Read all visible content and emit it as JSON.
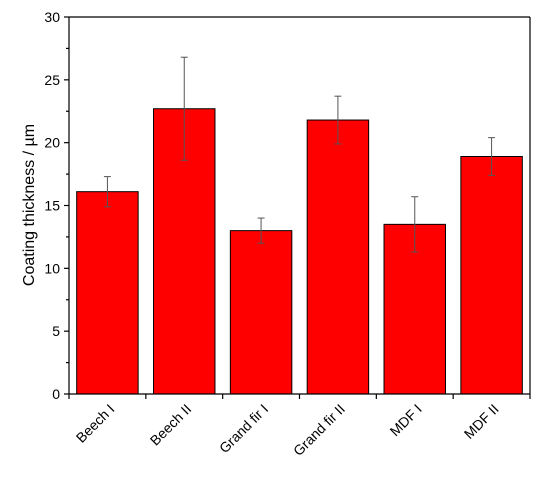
{
  "chart_data": {
    "type": "bar",
    "categories": [
      "Beech I",
      "Beech II",
      "Grand fir I",
      "Grand fir II",
      "MDF I",
      "MDF II"
    ],
    "values": [
      16.1,
      22.7,
      13.0,
      21.8,
      13.5,
      18.9
    ],
    "errors": [
      1.2,
      4.1,
      1.0,
      1.9,
      2.2,
      1.5
    ],
    "title": "",
    "xlabel": "",
    "ylabel": "Coating thickness  / µm",
    "ylim": [
      0,
      30
    ],
    "yticks": [
      0,
      5,
      10,
      15,
      20,
      25,
      30
    ],
    "grid": false,
    "bar_color": "#ff0000"
  }
}
